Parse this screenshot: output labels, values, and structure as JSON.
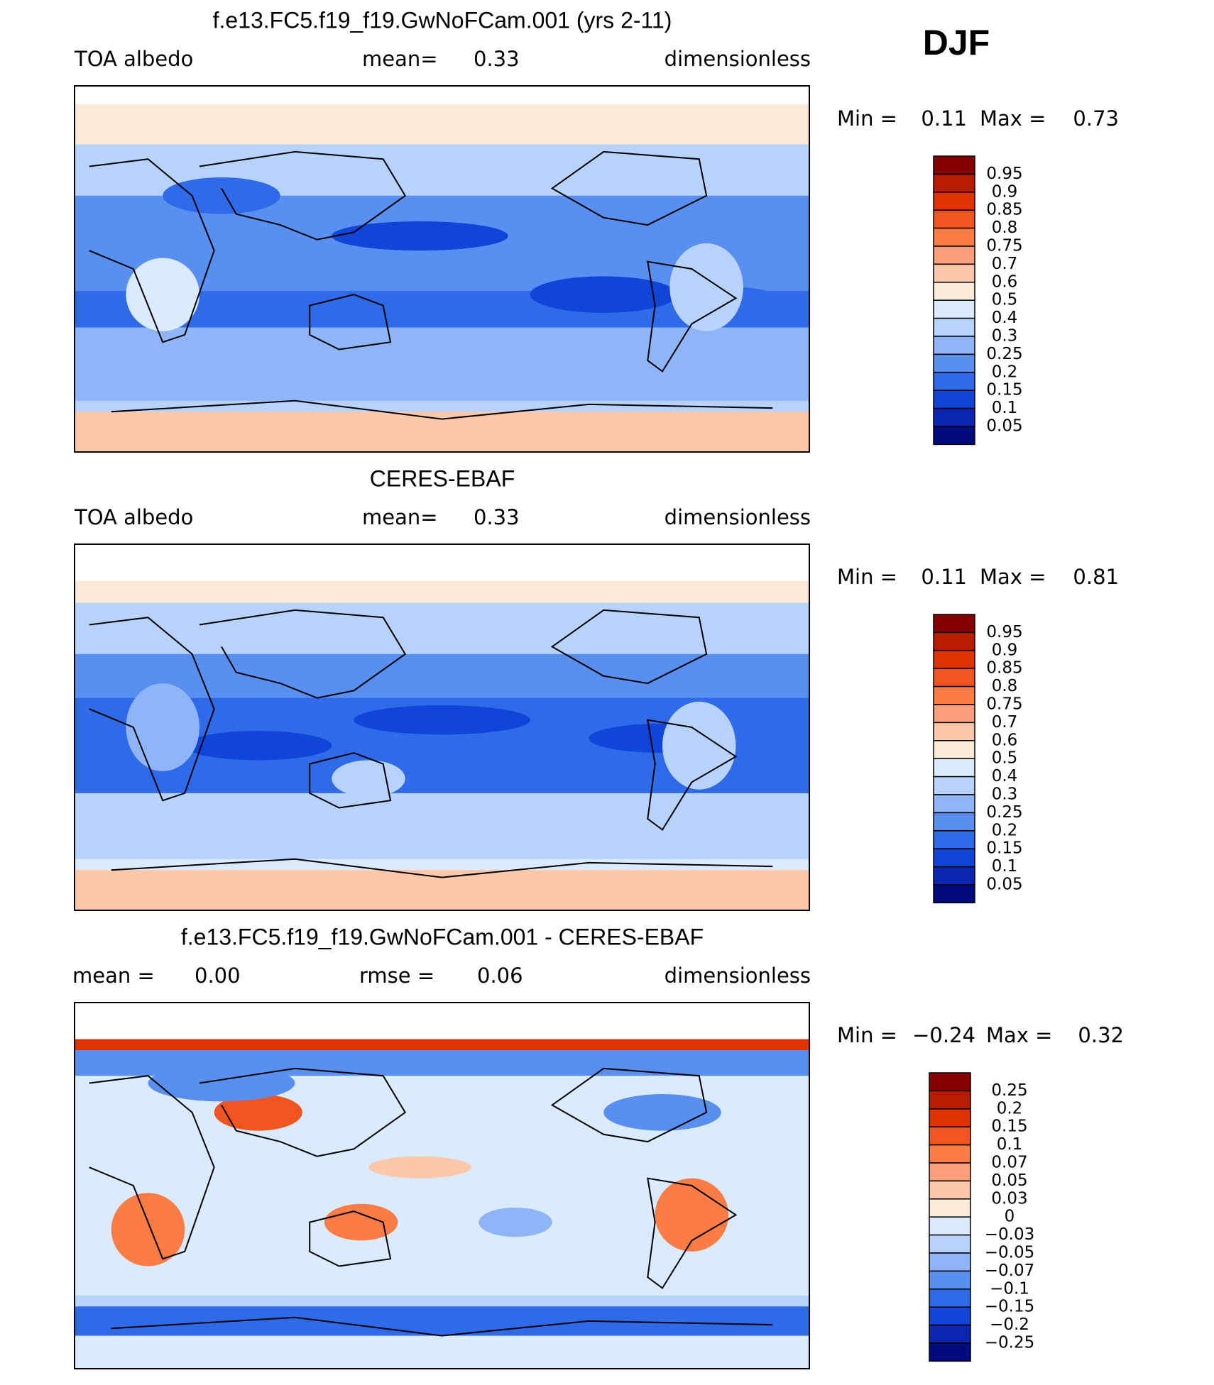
{
  "season": "DJF",
  "colorbar_colors": [
    "#870000",
    "#b71c00",
    "#e03300",
    "#f2541f",
    "#fb7c45",
    "#fc9f7a",
    "#fdc7aa",
    "#fdebd9",
    "#d9ebfc",
    "#b7d3fb",
    "#8fb5f8",
    "#5a8ff2",
    "#2f6ae8",
    "#0f45d8",
    "#0a25b0",
    "#000b80"
  ],
  "panels": [
    {
      "title": "f.e13.FC5.f19_f19.GwNoFCam.001 (yrs 2-11)",
      "field": "TOA albedo",
      "stats": [
        {
          "label": "mean=",
          "value": "0.33"
        }
      ],
      "units": "dimensionless",
      "min_label": "Min =",
      "min": "0.11",
      "max_label": "Max =",
      "max": "0.73",
      "colorbar_labels": [
        "0.95",
        "0.9",
        "0.85",
        "0.8",
        "0.75",
        "0.7",
        "0.6",
        "0.5",
        "0.4",
        "0.3",
        "0.25",
        "0.2",
        "0.15",
        "0.1",
        "0.05"
      ]
    },
    {
      "title": "CERES-EBAF",
      "field": "TOA albedo",
      "stats": [
        {
          "label": "mean=",
          "value": "0.33"
        }
      ],
      "units": "dimensionless",
      "min_label": "Min =",
      "min": "0.11",
      "max_label": "Max =",
      "max": "0.81",
      "colorbar_labels": [
        "0.95",
        "0.9",
        "0.85",
        "0.8",
        "0.75",
        "0.7",
        "0.6",
        "0.5",
        "0.4",
        "0.3",
        "0.25",
        "0.2",
        "0.15",
        "0.1",
        "0.05"
      ]
    },
    {
      "title": "f.e13.FC5.f19_f19.GwNoFCam.001 - CERES-EBAF",
      "stats": [
        {
          "label": "mean =",
          "value": "0.00"
        },
        {
          "label": "rmse =",
          "value": "0.06"
        }
      ],
      "units": "dimensionless",
      "min_label": "Min =",
      "min": "−0.24",
      "max_label": "Max =",
      "max": "0.32",
      "colorbar_labels": [
        "0.25",
        "0.2",
        "0.15",
        "0.1",
        "0.07",
        "0.05",
        "0.03",
        "0",
        "−0.03",
        "−0.05",
        "−0.07",
        "−0.1",
        "−0.15",
        "−0.2",
        "−0.25"
      ]
    }
  ]
}
